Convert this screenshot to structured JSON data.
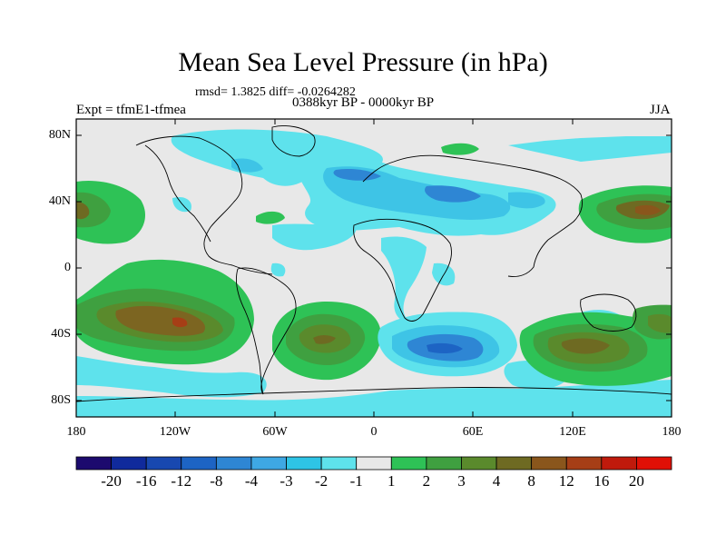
{
  "title": "Mean Sea Level Pressure (in hPa)",
  "stats": "rmsd= 1.3825 diff= -0.0264282",
  "period": "0388kyr BP - 0000kyr BP",
  "experiment": "Expt = tfmE1-tfmea",
  "season": "JJA",
  "lat_ticks": [
    "80N",
    "40N",
    "0",
    "40S",
    "80S"
  ],
  "lon_ticks": [
    "180",
    "120W",
    "60W",
    "0",
    "60E",
    "120E",
    "180"
  ],
  "colorbar": {
    "labels": [
      "-20",
      "-16",
      "-12",
      "-8",
      "-4",
      "-3",
      "-2",
      "-1",
      "1",
      "2",
      "3",
      "4",
      "8",
      "12",
      "16",
      "20"
    ],
    "colors": [
      "#1c0a6e",
      "#102a9c",
      "#1848b0",
      "#1d64c4",
      "#2e86d4",
      "#3ea8e4",
      "#2ec4e6",
      "#5ee2ec",
      "#e8e8e8",
      "#2ec256",
      "#3fa040",
      "#5a8a2c",
      "#6e6a22",
      "#8a561c",
      "#a63e16",
      "#c01a0c",
      "#e01006"
    ]
  },
  "colors": {
    "neutral": "#e8e8e8"
  }
}
